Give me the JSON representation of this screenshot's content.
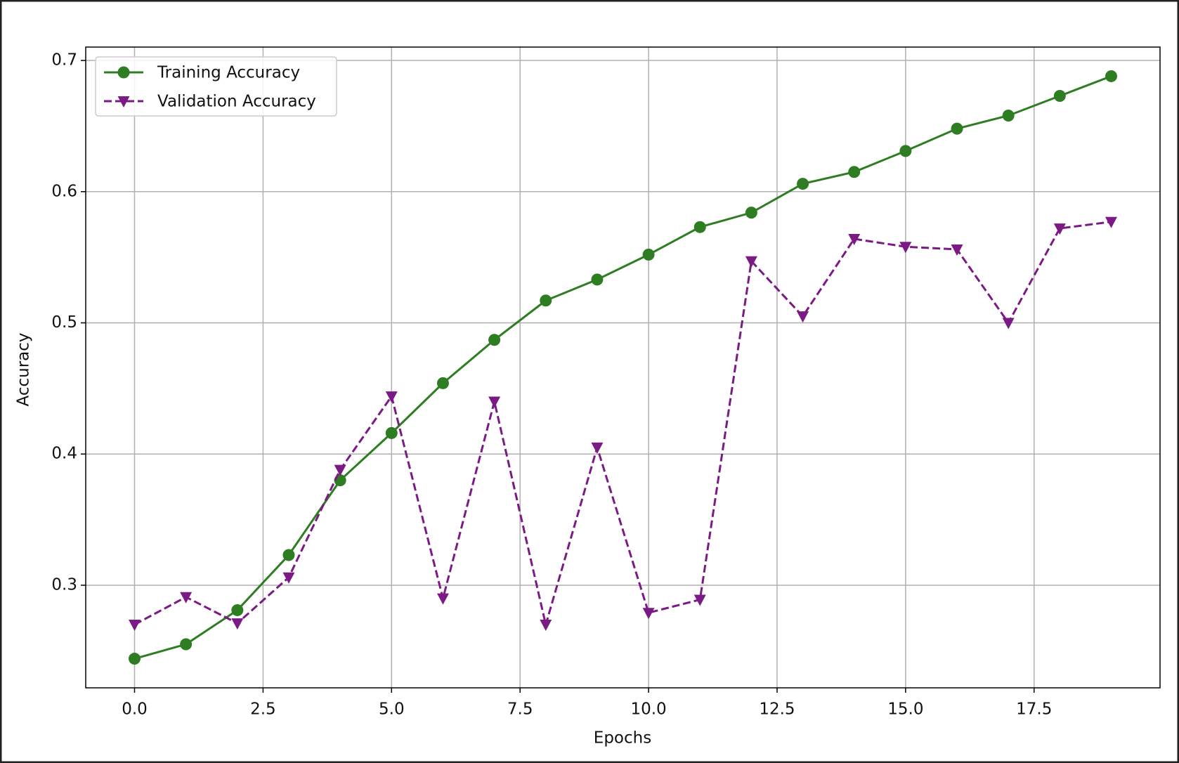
{
  "chart_data": {
    "type": "line",
    "x": [
      0,
      1,
      2,
      3,
      4,
      5,
      6,
      7,
      8,
      9,
      10,
      11,
      12,
      13,
      14,
      15,
      16,
      17,
      18,
      19
    ],
    "xlabel": "Epochs",
    "ylabel": "Accuracy",
    "series": [
      {
        "name": "Training Accuracy",
        "color": "#2e7d22",
        "marker": "circle",
        "linestyle": "solid",
        "values": [
          0.244,
          0.255,
          0.281,
          0.323,
          0.38,
          0.416,
          0.454,
          0.487,
          0.517,
          0.533,
          0.552,
          0.573,
          0.584,
          0.606,
          0.615,
          0.631,
          0.648,
          0.658,
          0.673,
          0.688
        ]
      },
      {
        "name": "Validation Accuracy",
        "color": "#7b1a84",
        "marker": "triangle-down",
        "linestyle": "dashed",
        "values": [
          0.27,
          0.291,
          0.271,
          0.306,
          0.388,
          0.444,
          0.29,
          0.44,
          0.27,
          0.405,
          0.279,
          0.289,
          0.547,
          0.505,
          0.564,
          0.558,
          0.556,
          0.5,
          0.572,
          0.577
        ]
      }
    ],
    "xlim": [
      -0.95,
      19.95
    ],
    "xticks": [
      {
        "value": 0,
        "label": "0.0"
      },
      {
        "value": 2.5,
        "label": "2.5"
      },
      {
        "value": 5,
        "label": "5.0"
      },
      {
        "value": 7.5,
        "label": "7.5"
      },
      {
        "value": 10,
        "label": "10.0"
      },
      {
        "value": 12.5,
        "label": "12.5"
      },
      {
        "value": 15,
        "label": "15.0"
      },
      {
        "value": 17.5,
        "label": "17.5"
      }
    ],
    "ylim": [
      0.2218,
      0.7102
    ],
    "yticks": [
      0.3,
      0.4,
      0.5,
      0.6,
      0.7
    ],
    "grid": true,
    "legend": "upper left"
  }
}
